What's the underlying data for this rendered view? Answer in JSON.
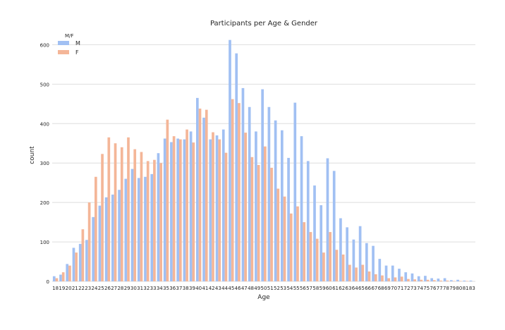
{
  "chart_data": {
    "type": "bar",
    "title": "Participants per Age & Gender",
    "xlabel": "Age",
    "ylabel": "count",
    "ylim": [
      0,
      640
    ],
    "yticks": [
      0,
      100,
      200,
      300,
      400,
      500,
      600
    ],
    "grid": true,
    "legend": {
      "title": "M/F",
      "placement": "top-left"
    },
    "categories": [
      "18",
      "19",
      "20",
      "21",
      "22",
      "23",
      "24",
      "25",
      "26",
      "27",
      "28",
      "29",
      "30",
      "31",
      "32",
      "33",
      "34",
      "35",
      "36",
      "37",
      "38",
      "39",
      "40",
      "41",
      "42",
      "43",
      "44",
      "45",
      "46",
      "47",
      "48",
      "49",
      "50",
      "51",
      "52",
      "53",
      "54",
      "55",
      "56",
      "57",
      "58",
      "59",
      "60",
      "61",
      "62",
      "63",
      "64",
      "65",
      "66",
      "67",
      "68",
      "69",
      "70",
      "71",
      "72",
      "73",
      "74",
      "75",
      "76",
      "77",
      "78",
      "79",
      "80",
      "81",
      "83"
    ],
    "series": [
      {
        "name": "M",
        "color": "#a1c0f3",
        "values": [
          13,
          17,
          44,
          85,
          95,
          105,
          163,
          192,
          213,
          220,
          232,
          260,
          285,
          262,
          265,
          272,
          325,
          362,
          353,
          362,
          360,
          380,
          465,
          415,
          360,
          370,
          385,
          612,
          578,
          490,
          442,
          380,
          487,
          442,
          408,
          383,
          313,
          453,
          368,
          305,
          243,
          193,
          312,
          280,
          160,
          137,
          106,
          140,
          97,
          90,
          57,
          40,
          40,
          32,
          23,
          20,
          13,
          14,
          8,
          7,
          8,
          3,
          4,
          2,
          2
        ]
      },
      {
        "name": "F",
        "color": "#f4b698",
        "values": [
          8,
          23,
          40,
          73,
          132,
          200,
          265,
          323,
          365,
          350,
          340,
          365,
          335,
          328,
          305,
          308,
          300,
          410,
          368,
          360,
          385,
          352,
          438,
          435,
          378,
          360,
          326,
          462,
          452,
          377,
          315,
          295,
          342,
          288,
          235,
          215,
          172,
          190,
          150,
          125,
          108,
          73,
          125,
          80,
          68,
          42,
          35,
          42,
          25,
          18,
          15,
          8,
          10,
          12,
          6,
          5,
          4,
          4,
          3,
          2,
          2,
          1,
          1,
          1,
          0
        ]
      }
    ]
  }
}
